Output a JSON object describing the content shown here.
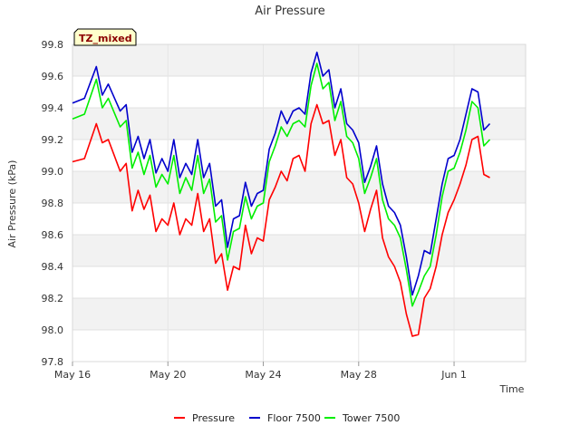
{
  "chart_data": {
    "type": "line",
    "title": "Air Pressure",
    "xlabel": "Time",
    "ylabel": "Air Pressure (kPa)",
    "badge": "TZ_mixed",
    "ylim": [
      97.8,
      99.8
    ],
    "yticks": [
      97.8,
      98.0,
      98.2,
      98.4,
      98.6,
      98.8,
      99.0,
      99.2,
      99.4,
      99.6,
      99.8
    ],
    "ytick_labels": [
      "97.8",
      "98.0",
      "98.2",
      "98.4",
      "98.6",
      "98.8",
      "99.0",
      "99.2",
      "99.4",
      "99.6",
      "99.8"
    ],
    "xlim": [
      "2024-05-16",
      "2024-06-04"
    ],
    "xtick_dates": [
      "2024-05-16",
      "2024-05-20",
      "2024-05-24",
      "2024-05-28",
      "2024-06-01"
    ],
    "xtick_labels": [
      "May 16",
      "May 20",
      "May 24",
      "May 28",
      "Jun 1"
    ],
    "grid": "horizontal bands",
    "legend_position": "bottom",
    "series": [
      {
        "name": "Pressure",
        "color": "#ff0000",
        "points": [
          [
            "2024-05-16",
            99.06
          ],
          [
            "2024-05-16T12:00",
            99.08
          ],
          [
            "2024-05-17",
            99.3
          ],
          [
            "2024-05-17T06:00",
            99.18
          ],
          [
            "2024-05-17T12:00",
            99.2
          ],
          [
            "2024-05-18",
            99.0
          ],
          [
            "2024-05-18T06:00",
            99.05
          ],
          [
            "2024-05-18T12:00",
            98.75
          ],
          [
            "2024-05-18T18:00",
            98.88
          ],
          [
            "2024-05-19",
            98.76
          ],
          [
            "2024-05-19T06:00",
            98.85
          ],
          [
            "2024-05-19T12:00",
            98.62
          ],
          [
            "2024-05-19T18:00",
            98.7
          ],
          [
            "2024-05-20",
            98.66
          ],
          [
            "2024-05-20T06:00",
            98.8
          ],
          [
            "2024-05-20T12:00",
            98.6
          ],
          [
            "2024-05-20T18:00",
            98.7
          ],
          [
            "2024-05-21",
            98.66
          ],
          [
            "2024-05-21T06:00",
            98.86
          ],
          [
            "2024-05-21T12:00",
            98.62
          ],
          [
            "2024-05-21T18:00",
            98.7
          ],
          [
            "2024-05-22",
            98.42
          ],
          [
            "2024-05-22T06:00",
            98.48
          ],
          [
            "2024-05-22T12:00",
            98.25
          ],
          [
            "2024-05-22T18:00",
            98.4
          ],
          [
            "2024-05-23",
            98.38
          ],
          [
            "2024-05-23T06:00",
            98.66
          ],
          [
            "2024-05-23T12:00",
            98.48
          ],
          [
            "2024-05-23T18:00",
            98.58
          ],
          [
            "2024-05-24",
            98.56
          ],
          [
            "2024-05-24T06:00",
            98.82
          ],
          [
            "2024-05-24T12:00",
            98.9
          ],
          [
            "2024-05-24T18:00",
            99.0
          ],
          [
            "2024-05-25",
            98.94
          ],
          [
            "2024-05-25T06:00",
            99.08
          ],
          [
            "2024-05-25T12:00",
            99.1
          ],
          [
            "2024-05-25T18:00",
            99.0
          ],
          [
            "2024-05-26",
            99.3
          ],
          [
            "2024-05-26T06:00",
            99.42
          ],
          [
            "2024-05-26T12:00",
            99.3
          ],
          [
            "2024-05-26T18:00",
            99.32
          ],
          [
            "2024-05-27",
            99.1
          ],
          [
            "2024-05-27T06:00",
            99.2
          ],
          [
            "2024-05-27T12:00",
            98.96
          ],
          [
            "2024-05-27T18:00",
            98.92
          ],
          [
            "2024-05-28",
            98.8
          ],
          [
            "2024-05-28T06:00",
            98.62
          ],
          [
            "2024-05-28T12:00",
            98.76
          ],
          [
            "2024-05-28T18:00",
            98.88
          ],
          [
            "2024-05-29",
            98.58
          ],
          [
            "2024-05-29T06:00",
            98.46
          ],
          [
            "2024-05-29T12:00",
            98.4
          ],
          [
            "2024-05-29T18:00",
            98.3
          ],
          [
            "2024-05-30",
            98.1
          ],
          [
            "2024-05-30T06:00",
            97.96
          ],
          [
            "2024-05-30T12:00",
            97.97
          ],
          [
            "2024-05-30T18:00",
            98.2
          ],
          [
            "2024-05-31",
            98.26
          ],
          [
            "2024-05-31T06:00",
            98.4
          ],
          [
            "2024-05-31T12:00",
            98.6
          ],
          [
            "2024-05-31T18:00",
            98.74
          ],
          [
            "2024-06-01",
            98.82
          ],
          [
            "2024-06-01T06:00",
            98.92
          ],
          [
            "2024-06-01T12:00",
            99.04
          ],
          [
            "2024-06-01T18:00",
            99.2
          ],
          [
            "2024-06-02",
            99.22
          ],
          [
            "2024-06-02T06:00",
            98.98
          ],
          [
            "2024-06-02T12:00",
            98.96
          ]
        ]
      },
      {
        "name": "Floor 7500",
        "color": "#0000cc",
        "points": [
          [
            "2024-05-16",
            99.43
          ],
          [
            "2024-05-16T12:00",
            99.46
          ],
          [
            "2024-05-17",
            99.66
          ],
          [
            "2024-05-17T06:00",
            99.48
          ],
          [
            "2024-05-17T12:00",
            99.55
          ],
          [
            "2024-05-18",
            99.38
          ],
          [
            "2024-05-18T06:00",
            99.42
          ],
          [
            "2024-05-18T12:00",
            99.12
          ],
          [
            "2024-05-18T18:00",
            99.22
          ],
          [
            "2024-05-19",
            99.08
          ],
          [
            "2024-05-19T06:00",
            99.2
          ],
          [
            "2024-05-19T12:00",
            98.99
          ],
          [
            "2024-05-19T18:00",
            99.08
          ],
          [
            "2024-05-20",
            99.0
          ],
          [
            "2024-05-20T06:00",
            99.2
          ],
          [
            "2024-05-20T12:00",
            98.96
          ],
          [
            "2024-05-20T18:00",
            99.05
          ],
          [
            "2024-05-21",
            98.98
          ],
          [
            "2024-05-21T06:00",
            99.2
          ],
          [
            "2024-05-21T12:00",
            98.96
          ],
          [
            "2024-05-21T18:00",
            99.05
          ],
          [
            "2024-05-22",
            98.78
          ],
          [
            "2024-05-22T06:00",
            98.82
          ],
          [
            "2024-05-22T12:00",
            98.52
          ],
          [
            "2024-05-22T18:00",
            98.7
          ],
          [
            "2024-05-23",
            98.72
          ],
          [
            "2024-05-23T06:00",
            98.93
          ],
          [
            "2024-05-23T12:00",
            98.78
          ],
          [
            "2024-05-23T18:00",
            98.86
          ],
          [
            "2024-05-24",
            98.88
          ],
          [
            "2024-05-24T06:00",
            99.14
          ],
          [
            "2024-05-24T12:00",
            99.24
          ],
          [
            "2024-05-24T18:00",
            99.38
          ],
          [
            "2024-05-25",
            99.3
          ],
          [
            "2024-05-25T06:00",
            99.38
          ],
          [
            "2024-05-25T12:00",
            99.4
          ],
          [
            "2024-05-25T18:00",
            99.36
          ],
          [
            "2024-05-26",
            99.62
          ],
          [
            "2024-05-26T06:00",
            99.75
          ],
          [
            "2024-05-26T12:00",
            99.6
          ],
          [
            "2024-05-26T18:00",
            99.64
          ],
          [
            "2024-05-27",
            99.4
          ],
          [
            "2024-05-27T06:00",
            99.52
          ],
          [
            "2024-05-27T12:00",
            99.3
          ],
          [
            "2024-05-27T18:00",
            99.26
          ],
          [
            "2024-05-28",
            99.18
          ],
          [
            "2024-05-28T06:00",
            98.93
          ],
          [
            "2024-05-28T12:00",
            99.03
          ],
          [
            "2024-05-28T18:00",
            99.16
          ],
          [
            "2024-05-29",
            98.92
          ],
          [
            "2024-05-29T06:00",
            98.78
          ],
          [
            "2024-05-29T12:00",
            98.74
          ],
          [
            "2024-05-29T18:00",
            98.66
          ],
          [
            "2024-05-30",
            98.46
          ],
          [
            "2024-05-30T06:00",
            98.22
          ],
          [
            "2024-05-30T12:00",
            98.34
          ],
          [
            "2024-05-30T18:00",
            98.5
          ],
          [
            "2024-05-31",
            98.48
          ],
          [
            "2024-05-31T06:00",
            98.7
          ],
          [
            "2024-05-31T12:00",
            98.92
          ],
          [
            "2024-05-31T18:00",
            99.08
          ],
          [
            "2024-06-01",
            99.1
          ],
          [
            "2024-06-01T06:00",
            99.2
          ],
          [
            "2024-06-01T12:00",
            99.36
          ],
          [
            "2024-06-01T18:00",
            99.52
          ],
          [
            "2024-06-02",
            99.5
          ],
          [
            "2024-06-02T06:00",
            99.26
          ],
          [
            "2024-06-02T12:00",
            99.3
          ]
        ]
      },
      {
        "name": "Tower 7500",
        "color": "#00ee00",
        "points": [
          [
            "2024-05-16",
            99.33
          ],
          [
            "2024-05-16T12:00",
            99.36
          ],
          [
            "2024-05-17",
            99.58
          ],
          [
            "2024-05-17T06:00",
            99.4
          ],
          [
            "2024-05-17T12:00",
            99.46
          ],
          [
            "2024-05-18",
            99.28
          ],
          [
            "2024-05-18T06:00",
            99.32
          ],
          [
            "2024-05-18T12:00",
            99.02
          ],
          [
            "2024-05-18T18:00",
            99.12
          ],
          [
            "2024-05-19",
            98.98
          ],
          [
            "2024-05-19T06:00",
            99.1
          ],
          [
            "2024-05-19T12:00",
            98.9
          ],
          [
            "2024-05-19T18:00",
            98.98
          ],
          [
            "2024-05-20",
            98.92
          ],
          [
            "2024-05-20T06:00",
            99.1
          ],
          [
            "2024-05-20T12:00",
            98.86
          ],
          [
            "2024-05-20T18:00",
            98.96
          ],
          [
            "2024-05-21",
            98.88
          ],
          [
            "2024-05-21T06:00",
            99.1
          ],
          [
            "2024-05-21T12:00",
            98.86
          ],
          [
            "2024-05-21T18:00",
            98.95
          ],
          [
            "2024-05-22",
            98.68
          ],
          [
            "2024-05-22T06:00",
            98.72
          ],
          [
            "2024-05-22T12:00",
            98.44
          ],
          [
            "2024-05-22T18:00",
            98.62
          ],
          [
            "2024-05-23",
            98.64
          ],
          [
            "2024-05-23T06:00",
            98.84
          ],
          [
            "2024-05-23T12:00",
            98.7
          ],
          [
            "2024-05-23T18:00",
            98.78
          ],
          [
            "2024-05-24",
            98.8
          ],
          [
            "2024-05-24T06:00",
            99.06
          ],
          [
            "2024-05-24T12:00",
            99.16
          ],
          [
            "2024-05-24T18:00",
            99.28
          ],
          [
            "2024-05-25",
            99.22
          ],
          [
            "2024-05-25T06:00",
            99.3
          ],
          [
            "2024-05-25T12:00",
            99.32
          ],
          [
            "2024-05-25T18:00",
            99.28
          ],
          [
            "2024-05-26",
            99.54
          ],
          [
            "2024-05-26T06:00",
            99.68
          ],
          [
            "2024-05-26T12:00",
            99.52
          ],
          [
            "2024-05-26T18:00",
            99.56
          ],
          [
            "2024-05-27",
            99.32
          ],
          [
            "2024-05-27T06:00",
            99.44
          ],
          [
            "2024-05-27T12:00",
            99.22
          ],
          [
            "2024-05-27T18:00",
            99.18
          ],
          [
            "2024-05-28",
            99.08
          ],
          [
            "2024-05-28T06:00",
            98.86
          ],
          [
            "2024-05-28T12:00",
            98.96
          ],
          [
            "2024-05-28T18:00",
            99.08
          ],
          [
            "2024-05-29",
            98.82
          ],
          [
            "2024-05-29T06:00",
            98.7
          ],
          [
            "2024-05-29T12:00",
            98.66
          ],
          [
            "2024-05-29T18:00",
            98.58
          ],
          [
            "2024-05-30",
            98.38
          ],
          [
            "2024-05-30T06:00",
            98.15
          ],
          [
            "2024-05-30T12:00",
            98.24
          ],
          [
            "2024-05-30T18:00",
            98.34
          ],
          [
            "2024-05-31",
            98.4
          ],
          [
            "2024-05-31T06:00",
            98.6
          ],
          [
            "2024-05-31T12:00",
            98.84
          ],
          [
            "2024-05-31T18:00",
            99.0
          ],
          [
            "2024-06-01",
            99.02
          ],
          [
            "2024-06-01T06:00",
            99.12
          ],
          [
            "2024-06-01T12:00",
            99.26
          ],
          [
            "2024-06-01T18:00",
            99.44
          ],
          [
            "2024-06-02",
            99.4
          ],
          [
            "2024-06-02T06:00",
            99.16
          ],
          [
            "2024-06-02T12:00",
            99.2
          ]
        ]
      }
    ]
  }
}
